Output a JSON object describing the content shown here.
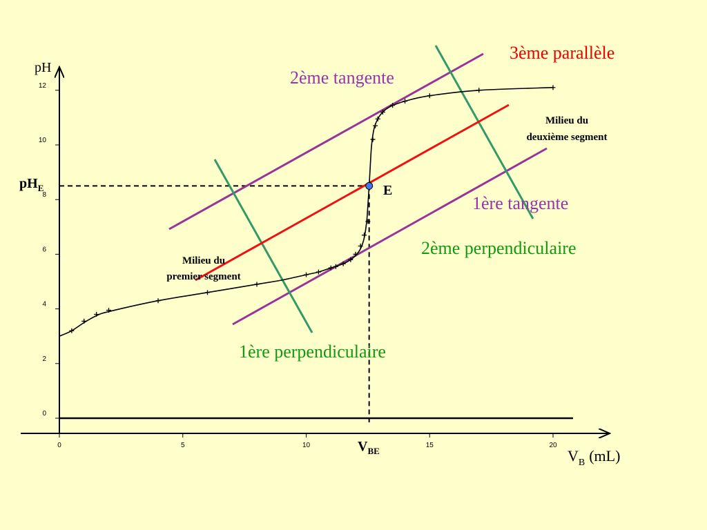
{
  "colors": {
    "background": "#ffffcc",
    "curve": "#000000",
    "tangent": "#993399",
    "perpendicular": "#339966",
    "parallel": "#ee1111",
    "label_purple": "#9933aa",
    "label_green": "#119911",
    "label_red": "#ee0000",
    "point_fill": "#4477ee"
  },
  "chart_data": {
    "type": "line",
    "title": "",
    "xlabel": "V",
    "xlabel_sub": "B",
    "xlabel_unit": "(mL)",
    "ylabel": "pH",
    "xlim": [
      0,
      20
    ],
    "ylim": [
      0,
      12
    ],
    "x_ticks": [
      0,
      5,
      10,
      15,
      20
    ],
    "y_ticks": [
      0,
      2,
      4,
      6,
      8,
      10,
      12
    ],
    "grid": false,
    "series": [
      {
        "curve": [
          [
            0,
            3.0
          ],
          [
            0.5,
            3.2
          ],
          [
            1,
            3.5
          ],
          [
            1.5,
            3.75
          ],
          [
            2,
            3.9
          ],
          [
            4,
            4.3
          ],
          [
            6,
            4.6
          ],
          [
            8,
            4.9
          ],
          [
            9,
            5.05
          ],
          [
            10,
            5.25
          ],
          [
            10.5,
            5.35
          ],
          [
            11,
            5.5
          ],
          [
            11.5,
            5.65
          ],
          [
            11.8,
            5.8
          ],
          [
            12,
            5.95
          ],
          [
            12.2,
            6.2
          ],
          [
            12.35,
            6.6
          ],
          [
            12.45,
            7.2
          ],
          [
            12.5,
            7.8
          ],
          [
            12.55,
            8.5
          ],
          [
            12.6,
            9.3
          ],
          [
            12.65,
            10.0
          ],
          [
            12.75,
            10.6
          ],
          [
            12.9,
            10.95
          ],
          [
            13.1,
            11.2
          ],
          [
            13.4,
            11.4
          ],
          [
            14,
            11.6
          ],
          [
            15,
            11.8
          ],
          [
            17,
            12.0
          ],
          [
            20,
            12.1
          ]
        ],
        "markers": [
          [
            0.5,
            3.2
          ],
          [
            1,
            3.55
          ],
          [
            1.5,
            3.8
          ],
          [
            2,
            3.95
          ],
          [
            4,
            4.3
          ],
          [
            6,
            4.6
          ],
          [
            8,
            4.9
          ],
          [
            10,
            5.25
          ],
          [
            10.5,
            5.35
          ],
          [
            11,
            5.5
          ],
          [
            11.2,
            5.55
          ],
          [
            11.5,
            5.65
          ],
          [
            11.8,
            5.8
          ],
          [
            12,
            6.0
          ],
          [
            12.2,
            6.3
          ],
          [
            12.35,
            6.7
          ],
          [
            12.5,
            7.2
          ],
          [
            12.7,
            10.2
          ],
          [
            12.8,
            10.7
          ],
          [
            12.9,
            10.95
          ],
          [
            13.1,
            11.2
          ],
          [
            13.5,
            11.45
          ],
          [
            14,
            11.6
          ],
          [
            15,
            11.8
          ],
          [
            17,
            12.0
          ],
          [
            20,
            12.1
          ]
        ]
      }
    ],
    "equivalence": {
      "vbe": 12.55,
      "phe": 8.5
    }
  },
  "labels": {
    "ph_e": "pH",
    "ph_e_sub": "E",
    "v_be": "V",
    "v_be_sub": "BE",
    "point_e": "E",
    "third_parallel": "3ème parallèle",
    "second_tangent": "2ème tangente",
    "first_tangent": "1ère tangente",
    "second_perpendicular": "2ème perpendiculaire",
    "first_perpendicular": "1ère perpendiculaire",
    "midpoint_second_line1": "Milieu du",
    "midpoint_second_line2": "deuxième segment",
    "midpoint_first_line1": "Milieu du",
    "midpoint_first_line2": "premier segment"
  }
}
